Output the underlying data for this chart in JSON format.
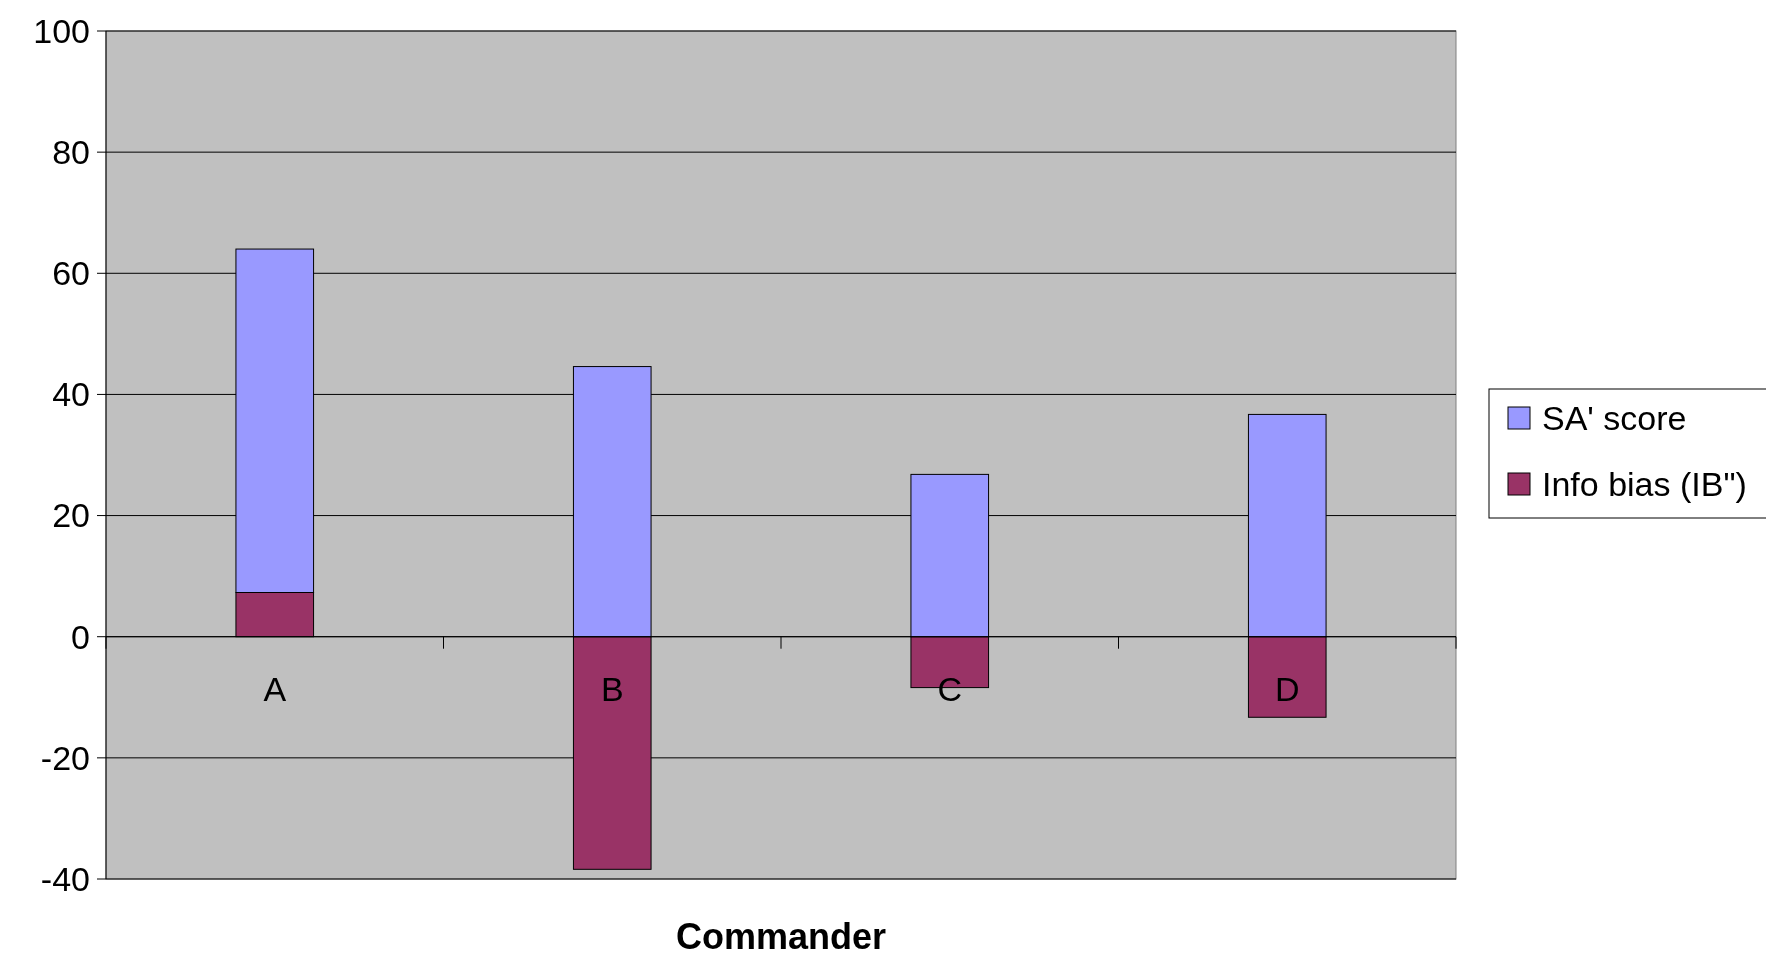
{
  "chart_data": {
    "type": "bar",
    "stacked": true,
    "xlabel": "Commander",
    "categories": [
      "A",
      "B",
      "C",
      "D"
    ],
    "series": [
      {
        "name": "Info bias (IB\")",
        "color": "#993366",
        "values": [
          7.3,
          -38.4,
          -8.4,
          -13.3
        ]
      },
      {
        "name": "SA' score",
        "color": "#9999ff",
        "values": [
          56.7,
          44.6,
          26.8,
          36.7
        ]
      }
    ],
    "ylim": [
      -40,
      100
    ],
    "yticks": [
      -40,
      -20,
      0,
      20,
      40,
      60,
      80,
      100
    ],
    "grid": "y",
    "legend": "right"
  }
}
